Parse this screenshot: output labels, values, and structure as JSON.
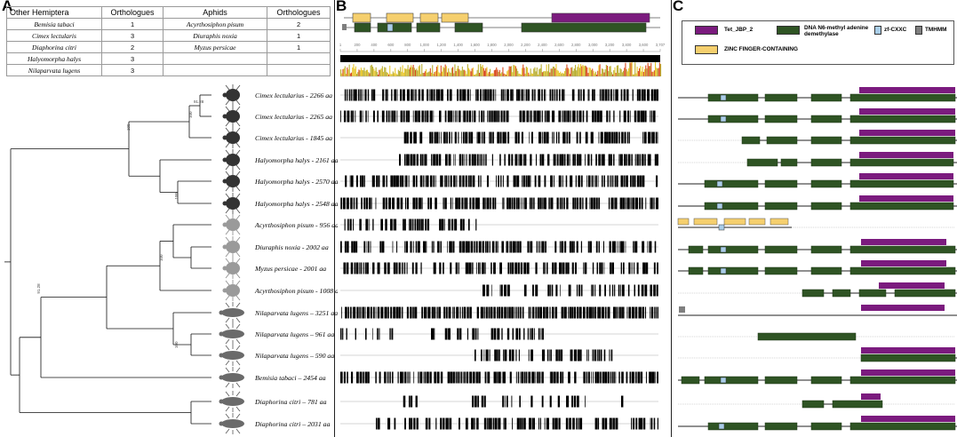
{
  "panels": {
    "a": "A",
    "b": "B",
    "c": "C"
  },
  "table": {
    "headers": [
      "Other Hemiptera",
      "Orthologues",
      "Aphids",
      "Orthologues"
    ],
    "rows": [
      [
        "Bemisia tabaci",
        "1",
        "Acyrthosiphon pisum",
        "2"
      ],
      [
        "Cimex lectularis",
        "3",
        "Diuraphis noxia",
        "1"
      ],
      [
        "Diaphorina citri",
        "2",
        "Myzus persicae",
        "1"
      ],
      [
        "Halyomorpha halys",
        "3",
        "",
        ""
      ],
      [
        "Nilaparvata lugens",
        "3",
        "",
        ""
      ]
    ]
  },
  "taxa": [
    "Cimex lectularius - 2266 aa",
    "Cimex lectularius - 2265 aa",
    "Cimex lectularius - 1845 aa",
    "Halyomorpha halys - 2161 aa",
    "Halyomorpha halys - 2570 aa",
    "Halyomorpha halys - 2548 aa",
    "Acyrthosiphon pisum - 956 aa",
    "Diuraphis noxia - 2002 aa",
    "Myzus persicae - 2001 aa",
    "Acyrthosiphon pisum - 1008 aa",
    "Nilaparvata lugens – 3251 aa",
    "Nilaparvata lugens – 961 aa",
    "Nilaparvata lugens – 590 aa",
    "Bemisia tabaci – 2454 aa",
    "Diaphorina citri – 781 aa",
    "Diaphorina citri – 2031 aa"
  ],
  "bootstrap": [
    "100",
    "100",
    "100",
    "100",
    "100",
    "91.28"
  ],
  "ruler_ticks": [
    "1",
    "200",
    "400",
    "600",
    "800",
    "1,000",
    "1,200",
    "1,400",
    "1,600",
    "1,800",
    "2,000",
    "2,200",
    "2,400",
    "2,600",
    "2,800",
    "3,000",
    "3,200",
    "3,400",
    "3,600",
    "3,707"
  ],
  "legend": {
    "tet": "Tet_JBP_2",
    "dna_line1": "DNA N6-methyl adenine",
    "dna_line2": "demethylase",
    "zf": "zf-CXXC",
    "tmhmm": "TMHMM",
    "zinc": "ZINC FINGER-CONTAINING"
  },
  "colors": {
    "tet": "#7b1b7e",
    "dna": "#2f5424",
    "zf": "#a9cde8",
    "tmhmm": "#7f7f7f",
    "zinc": "#f5cf6e"
  }
}
